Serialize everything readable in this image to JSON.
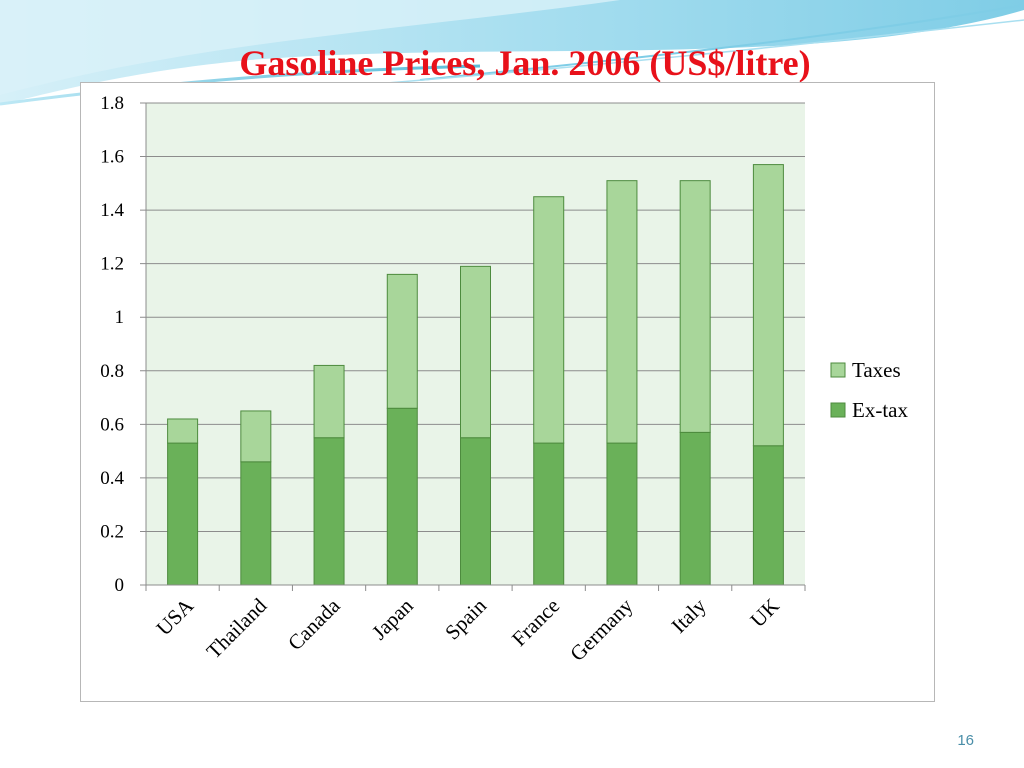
{
  "slide": {
    "title": "Gasoline Prices, Jan. 2006 (US$/litre)",
    "page_number": "16"
  },
  "colors": {
    "plot_background": "#e9f4e8",
    "taxes": "#a8d69a",
    "ex_tax": "#6ab159",
    "bar_border": "#4d8b3e",
    "gridline": "#8c8c8c",
    "title": "#e8111a",
    "header_wave": "#bfe6f3"
  },
  "chart_data": {
    "type": "bar",
    "stacked": true,
    "title": "",
    "xlabel": "",
    "ylabel": "",
    "categories": [
      "USA",
      "Thailand",
      "Canada",
      "Japan",
      "Spain",
      "France",
      "Germany",
      "Italy",
      "UK"
    ],
    "series": [
      {
        "name": "Ex-tax",
        "values": [
          0.53,
          0.46,
          0.55,
          0.66,
          0.55,
          0.53,
          0.53,
          0.57,
          0.52
        ]
      },
      {
        "name": "Taxes",
        "values": [
          0.09,
          0.19,
          0.27,
          0.5,
          0.64,
          0.92,
          0.98,
          0.94,
          1.05
        ]
      }
    ],
    "ylim": [
      0,
      1.8
    ],
    "yticks": [
      "0",
      "0.2",
      "0.4",
      "0.6",
      "0.8",
      "1",
      "1.2",
      "1.4",
      "1.6",
      "1.8"
    ],
    "grid": true,
    "legend_position": "right",
    "legend_order": [
      "Taxes",
      "Ex-tax"
    ]
  }
}
